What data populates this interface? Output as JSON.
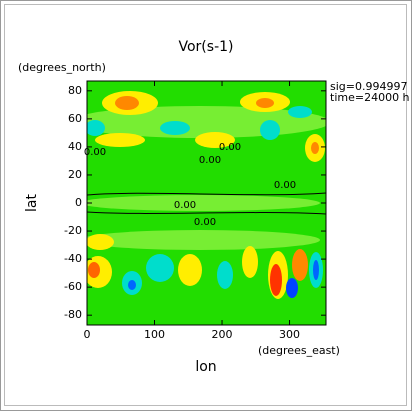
{
  "chart_data": {
    "type": "contour",
    "title": "Vor(s-1)",
    "y_units": "(degrees_north)",
    "x_units": "(degrees_east)",
    "annotations": [
      "sig=0.994997",
      "time=24000 h"
    ],
    "xlabel": "lon",
    "ylabel": "lat",
    "xlim": [
      0,
      354
    ],
    "ylim": [
      -87,
      87
    ],
    "xticks": [
      0,
      100,
      200,
      300
    ],
    "yticks": [
      -80,
      -60,
      -40,
      -20,
      0,
      20,
      40,
      60,
      80
    ],
    "contour_labels": [
      {
        "value": 0,
        "label": "0.00"
      },
      {
        "value": 0,
        "label": "0.00"
      },
      {
        "value": 0,
        "label": "0.00"
      },
      {
        "value": 0,
        "label": "0.00"
      },
      {
        "value": 0,
        "label": "0.00"
      },
      {
        "value": 0,
        "label": "0.00"
      }
    ]
  }
}
